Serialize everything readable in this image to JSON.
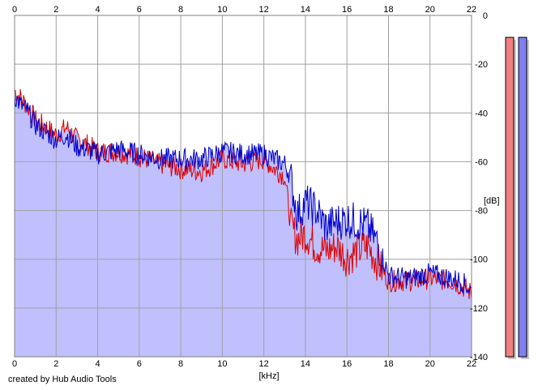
{
  "credit": "created by Hub Audio Tools",
  "chart_data": {
    "type": "area",
    "xlabel": "[kHz]",
    "ylabel": "[dB]",
    "xlim": [
      0,
      22
    ],
    "ylim": [
      -140,
      0
    ],
    "x_ticks": [
      0,
      2,
      4,
      6,
      8,
      10,
      12,
      14,
      16,
      18,
      20,
      22
    ],
    "y_ticks": [
      0,
      -20,
      -40,
      -60,
      -80,
      -100,
      -120,
      -140
    ],
    "grid": true,
    "fill_color": "#c0c0ff",
    "series": [
      {
        "color": "#dd0000",
        "x": [
          0,
          0.3,
          0.6,
          1,
          1.5,
          2,
          2.5,
          3,
          3.5,
          4,
          5,
          6,
          7,
          8,
          9,
          10,
          11,
          12,
          12.5,
          13,
          13.3,
          13.6,
          14,
          14.5,
          15,
          15.5,
          16,
          16.5,
          17,
          17.5,
          18,
          19,
          20,
          21,
          21.5,
          22
        ],
        "values": [
          -30,
          -33,
          -36,
          -42,
          -45,
          -48,
          -45,
          -50,
          -52,
          -55,
          -55,
          -57,
          -60,
          -62,
          -63,
          -58,
          -60,
          -58,
          -62,
          -65,
          -85,
          -90,
          -88,
          -93,
          -95,
          -93,
          -98,
          -95,
          -93,
          -100,
          -108,
          -108,
          -107,
          -108,
          -110,
          -113
        ]
      },
      {
        "color": "#0000cc",
        "x": [
          0,
          0.3,
          0.6,
          1,
          1.5,
          2,
          2.5,
          3,
          3.5,
          4,
          5,
          6,
          7,
          8,
          9,
          10,
          11,
          12,
          12.5,
          13,
          13.3,
          13.6,
          14,
          14.5,
          15,
          15.5,
          16,
          16.5,
          17,
          17.5,
          18,
          19,
          20,
          21,
          21.5,
          22
        ],
        "values": [
          -32,
          -36,
          -38,
          -44,
          -47,
          -50,
          -48,
          -53,
          -54,
          -56,
          -54,
          -56,
          -58,
          -58,
          -58,
          -55,
          -56,
          -56,
          -58,
          -60,
          -65,
          -80,
          -75,
          -78,
          -85,
          -83,
          -82,
          -83,
          -85,
          -92,
          -106,
          -107,
          -105,
          -107,
          -108,
          -112
        ]
      }
    ],
    "level_meters": [
      {
        "color": "#f08080",
        "value": -9
      },
      {
        "color": "#8080f0",
        "value": -9
      }
    ]
  }
}
